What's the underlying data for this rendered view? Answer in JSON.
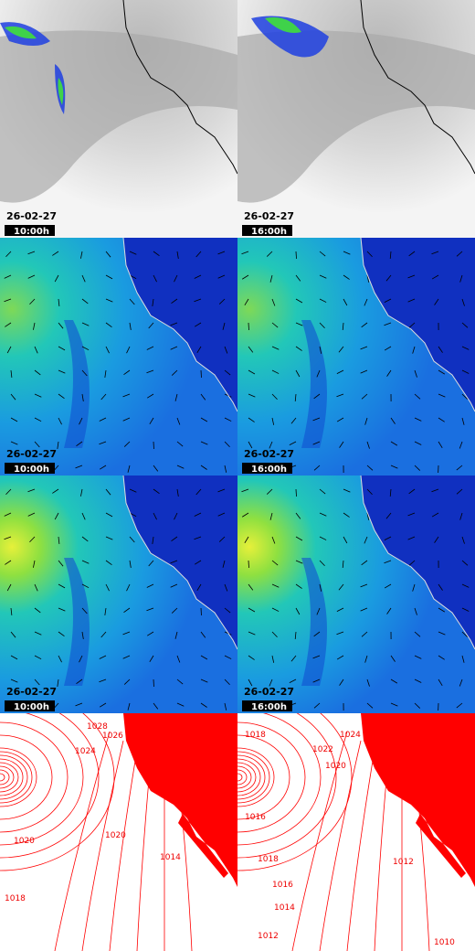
{
  "panels": [
    {
      "date": "26-02-27",
      "time": "10:00h"
    },
    {
      "date": "26-02-27",
      "time": "16:00h"
    },
    {
      "date": "26-02-27",
      "time": "10:00h"
    },
    {
      "date": "26-02-27",
      "time": "16:00h"
    },
    {
      "date": "26-02-27",
      "time": "10:00h"
    },
    {
      "date": "26-02-27",
      "time": "16:00h"
    }
  ],
  "isobars": {
    "left": [
      "1028",
      "1026",
      "1024",
      "1020",
      "1020",
      "1018",
      "1014"
    ],
    "right": [
      "1018",
      "1024",
      "1022",
      "1020",
      "1016",
      "1018",
      "1012",
      "1016",
      "1014",
      "1012",
      "1010"
    ]
  }
}
